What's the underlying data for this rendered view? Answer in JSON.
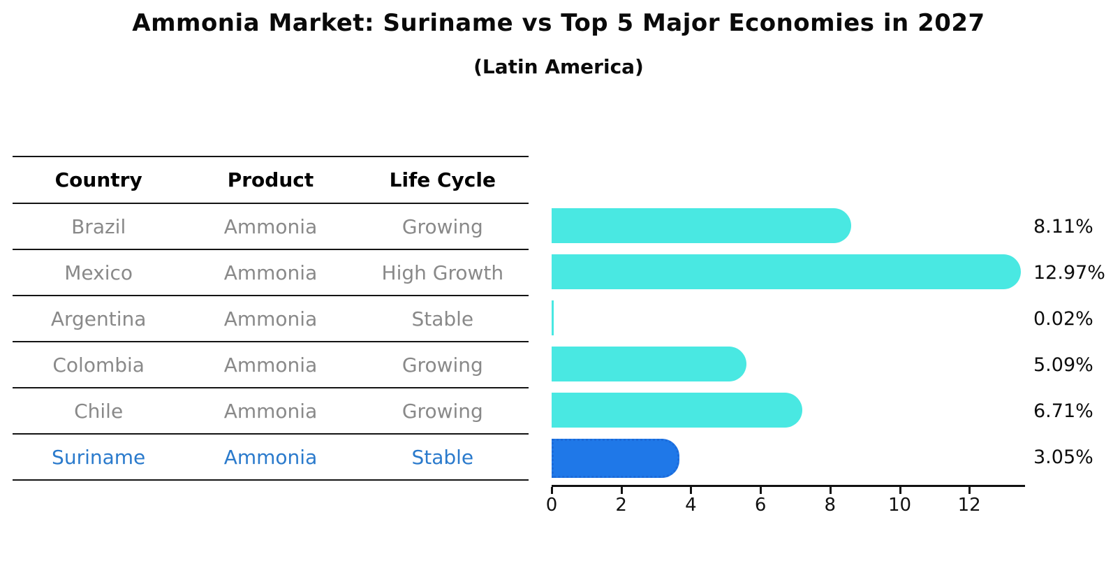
{
  "chart_data": {
    "type": "bar",
    "orientation": "horizontal",
    "title": "Ammonia Market: Suriname vs Top 5 Major Economies in 2027",
    "subtitle": "(Latin America)",
    "xlabel": "",
    "ylabel": "",
    "xlim": [
      0,
      13.6
    ],
    "xticks": [
      0,
      2,
      4,
      6,
      8,
      10,
      12
    ],
    "grid": false,
    "legend": "none",
    "table_headers": [
      "Country",
      "Product",
      "Life Cycle"
    ],
    "rows": [
      {
        "country": "Brazil",
        "product": "Ammonia",
        "life_cycle": "Growing",
        "value": 8.11,
        "value_label": "8.11%",
        "highlight": false
      },
      {
        "country": "Mexico",
        "product": "Ammonia",
        "life_cycle": "High Growth",
        "value": 12.97,
        "value_label": "12.97%",
        "highlight": false
      },
      {
        "country": "Argentina",
        "product": "Ammonia",
        "life_cycle": "Stable",
        "value": 0.02,
        "value_label": "0.02%",
        "highlight": false
      },
      {
        "country": "Colombia",
        "product": "Ammonia",
        "life_cycle": "Growing",
        "value": 5.09,
        "value_label": "5.09%",
        "highlight": false
      },
      {
        "country": "Chile",
        "product": "Ammonia",
        "life_cycle": "Growing",
        "value": 6.71,
        "value_label": "6.71%",
        "highlight": false
      },
      {
        "country": "Suriname",
        "product": "Ammonia",
        "life_cycle": "Stable",
        "value": 3.05,
        "value_label": "3.05%",
        "highlight": true
      }
    ],
    "colors": {
      "bar": "#49E8E2",
      "highlight_bar": "#1F78E8",
      "highlight_text": "#2A7ACC",
      "row_text": "#898989",
      "header_text": "#000000",
      "axis": "#111111"
    }
  }
}
